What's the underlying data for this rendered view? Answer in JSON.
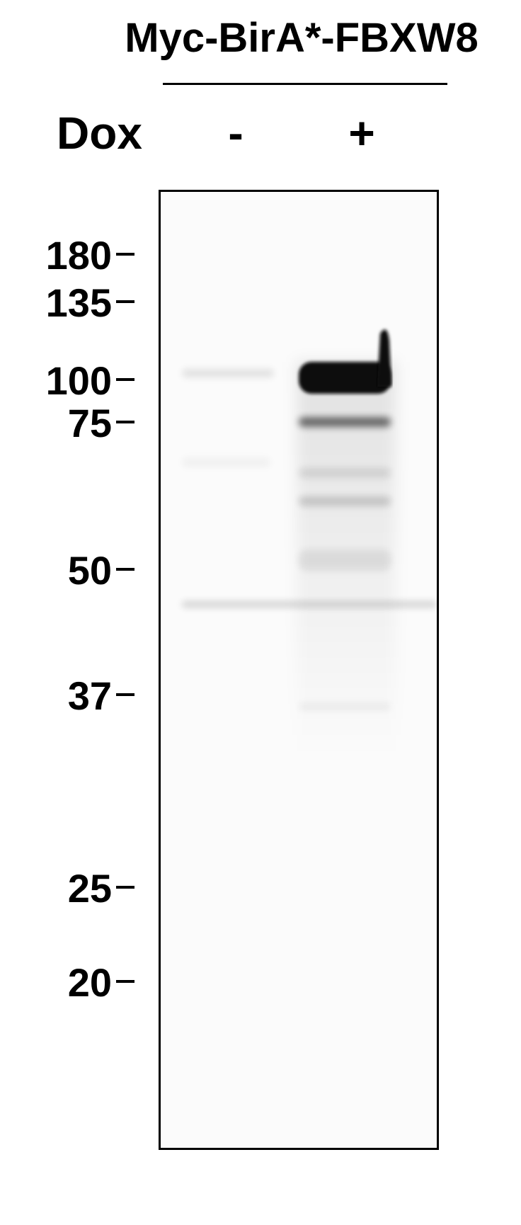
{
  "construct": {
    "label": "Myc-BirA*-FBXW8"
  },
  "treatment": {
    "label": "Dox",
    "lanes": [
      "-",
      "+"
    ]
  },
  "markers": [
    "180",
    "135",
    "100",
    "75",
    "50",
    "37",
    "25",
    "20"
  ],
  "colors": {
    "background": "#ffffff",
    "ink": "#000000",
    "blot_background": "#fbfbfb",
    "band": "#0a0a0a"
  }
}
